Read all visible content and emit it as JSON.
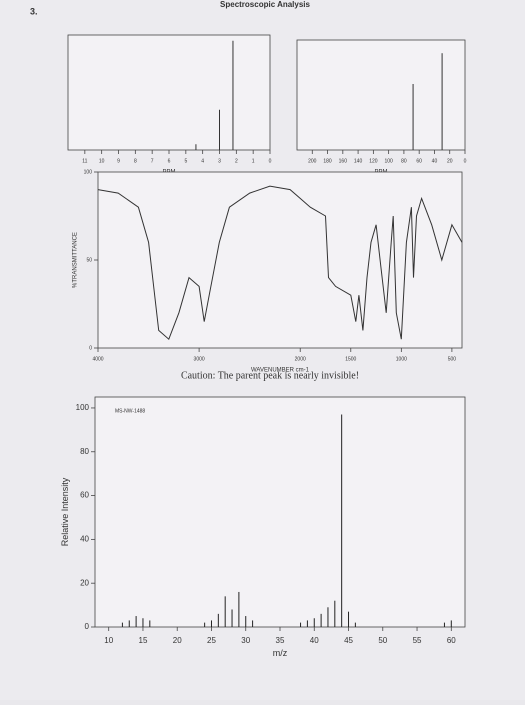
{
  "header": {
    "number": "3.",
    "title": "Spectroscopic Analysis"
  },
  "caution": "Caution: The parent peak is nearly invisible!",
  "chart_data": [
    {
      "type": "bar",
      "x_label": "PPM",
      "xlim": [
        12,
        0
      ],
      "xticks": [
        11,
        10,
        9,
        8,
        7,
        6,
        5,
        4,
        3,
        2,
        1,
        0
      ],
      "ylim": [
        0,
        100
      ],
      "x": [
        4.4,
        3.0,
        2.2
      ],
      "values": [
        5,
        35,
        95
      ],
      "color": "#333333"
    },
    {
      "type": "bar",
      "x_label": "PPM",
      "xlim": [
        220,
        0
      ],
      "xticks": [
        200,
        180,
        160,
        140,
        120,
        100,
        80,
        60,
        40,
        20,
        0
      ],
      "ylim": [
        0,
        100
      ],
      "x": [
        68,
        30
      ],
      "values": [
        60,
        88
      ],
      "color": "#333333"
    },
    {
      "type": "line",
      "x_label": "WAVENUMBER cm-1",
      "y_label": "%TRANSMITTANCE",
      "xlim": [
        4000,
        400
      ],
      "xticks": [
        4000,
        3000,
        2000,
        1500,
        1000,
        500
      ],
      "ylim": [
        0,
        100
      ],
      "yticks": [
        0,
        50,
        100
      ],
      "color": "#333333",
      "x": [
        4000,
        3800,
        3600,
        3500,
        3400,
        3300,
        3200,
        3100,
        3000,
        2950,
        2900,
        2800,
        2700,
        2500,
        2300,
        2100,
        2000,
        1900,
        1750,
        1720,
        1650,
        1500,
        1450,
        1420,
        1380,
        1340,
        1300,
        1250,
        1200,
        1150,
        1100,
        1080,
        1050,
        1000,
        950,
        900,
        880,
        850,
        800,
        700,
        600,
        500,
        400
      ],
      "values": [
        90,
        88,
        80,
        60,
        10,
        5,
        20,
        40,
        35,
        15,
        30,
        60,
        80,
        88,
        92,
        90,
        85,
        80,
        75,
        40,
        35,
        30,
        15,
        30,
        10,
        40,
        60,
        70,
        45,
        20,
        60,
        75,
        20,
        5,
        60,
        80,
        40,
        75,
        85,
        70,
        50,
        70,
        60
      ]
    },
    {
      "type": "bar",
      "x_label": "m/z",
      "y_label": "Relative Intensity",
      "annotation": "MS-NW-1488",
      "xlim": [
        8,
        62
      ],
      "xticks": [
        10,
        15,
        20,
        25,
        30,
        35,
        40,
        45,
        50,
        55,
        60
      ],
      "ylim": [
        0,
        105
      ],
      "yticks": [
        0,
        20,
        40,
        60,
        80,
        100
      ],
      "color": "#222222",
      "x": [
        12,
        13,
        14,
        15,
        16,
        24,
        25,
        26,
        27,
        28,
        29,
        30,
        31,
        38,
        39,
        40,
        41,
        42,
        43,
        44,
        45,
        46,
        59,
        60
      ],
      "values": [
        2,
        3,
        5,
        4,
        3,
        2,
        3,
        6,
        14,
        8,
        16,
        5,
        3,
        2,
        3,
        4,
        6,
        9,
        12,
        97,
        7,
        2,
        2,
        3
      ]
    }
  ]
}
